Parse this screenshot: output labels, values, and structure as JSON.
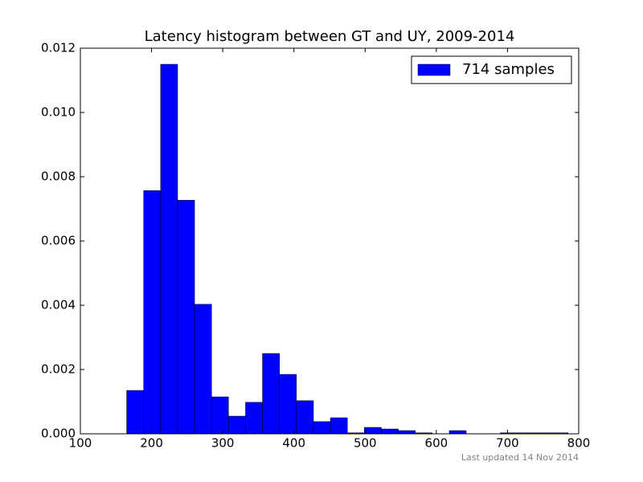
{
  "chart_data": {
    "type": "histogram",
    "title": "Latency histogram between GT and UY, 2009-2014",
    "bins": [
      165.0,
      188.9,
      212.7,
      236.6,
      260.4,
      284.3,
      308.1,
      332.0,
      355.8,
      379.7,
      403.5,
      427.4,
      451.2,
      475.1,
      498.9,
      522.8,
      546.6,
      570.5,
      594.3,
      618.2,
      642.0,
      665.9,
      689.7,
      713.6,
      737.4,
      761.3,
      785.1
    ],
    "series": [
      {
        "name": "714 samples",
        "color": "#0000ff",
        "values": [
          0.00135,
          0.00757,
          0.0115,
          0.00727,
          0.00403,
          0.00115,
          0.00055,
          0.00098,
          0.0025,
          0.00185,
          0.00103,
          0.00038,
          0.0005,
          3e-05,
          0.0002,
          0.00015,
          0.0001,
          3e-05,
          0,
          0.0001,
          0,
          0,
          3e-05,
          3e-05,
          3e-05,
          3e-05
        ]
      }
    ],
    "xlim": [
      100,
      800
    ],
    "xticks": [
      100,
      200,
      300,
      400,
      500,
      600,
      700,
      800
    ],
    "ylim": [
      0,
      0.012
    ],
    "yticks": [
      {
        "value": 0,
        "label": "0.000"
      },
      {
        "value": 0.002,
        "label": "0.002"
      },
      {
        "value": 0.004,
        "label": "0.004"
      },
      {
        "value": 0.006,
        "label": "0.006"
      },
      {
        "value": 0.008,
        "label": "0.008"
      },
      {
        "value": 0.01,
        "label": "0.010"
      },
      {
        "value": 0.012,
        "label": "0.012"
      }
    ],
    "legend": "upper right",
    "footnote": "Last updated 14 Nov 2014"
  }
}
